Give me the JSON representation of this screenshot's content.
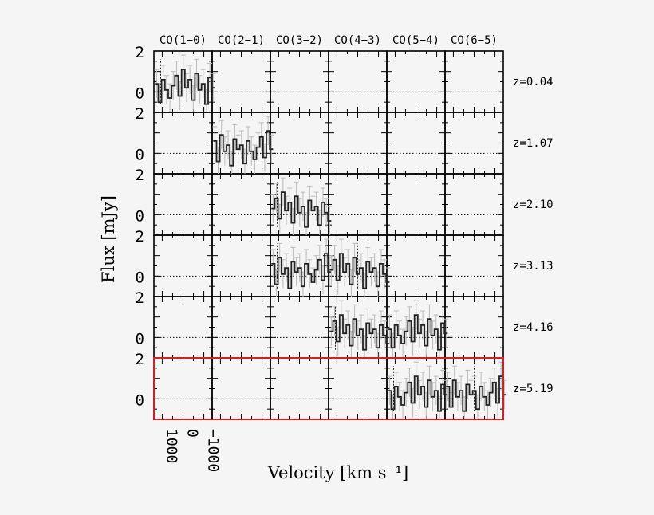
{
  "chart_data": {
    "type": "line",
    "title": "",
    "xlabel": "Velocity [km s⁻¹]",
    "ylabel": "Flux [mJy]",
    "columns": [
      "CO(1−0)",
      "CO(2−1)",
      "CO(3−2)",
      "CO(4−3)",
      "CO(5−4)",
      "CO(6−5)"
    ],
    "rows": [
      "z=0.04",
      "z=1.07",
      "z=2.10",
      "z=3.13",
      "z=4.16",
      "z=5.19"
    ],
    "xlim": [
      1400,
      -1400
    ],
    "ylim": [
      -1.0,
      2.0
    ],
    "y_tick_labels": [
      "2",
      "0"
    ],
    "x_tick_labels": [
      "1000",
      "0",
      "−1000"
    ],
    "highlighted_row": "z=5.19",
    "spectrum_velocity": [
      1350,
      1190,
      1030,
      870,
      710,
      550,
      390,
      230,
      70,
      -90,
      -250,
      -410,
      -570,
      -730,
      -890,
      -1050,
      -1210,
      -1370
    ],
    "spectrum_flux": [
      0.4,
      -0.5,
      0.6,
      0.1,
      -0.3,
      0.3,
      0.8,
      -0.2,
      1.1,
      0.2,
      0.6,
      -0.4,
      0.9,
      0.1,
      0.4,
      -0.6,
      0.7,
      0.2
    ],
    "spectrum_error": 0.7,
    "detections": [
      {
        "row": 0,
        "cols": [
          0
        ]
      },
      {
        "row": 1,
        "cols": [
          1
        ]
      },
      {
        "row": 2,
        "cols": [
          2
        ]
      },
      {
        "row": 3,
        "cols": [
          2,
          3
        ]
      },
      {
        "row": 4,
        "cols": [
          3,
          4
        ]
      },
      {
        "row": 5,
        "cols": [
          4,
          5
        ]
      }
    ]
  },
  "colors": {
    "highlight": "#d62020",
    "spectrum": "#222222",
    "errorbar": "#bbbbbb",
    "axis": "#000000"
  }
}
